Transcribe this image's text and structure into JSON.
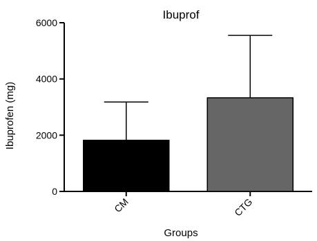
{
  "chart_data": {
    "type": "bar",
    "title": "Ibuprof",
    "xlabel": "Groups",
    "ylabel": "Ibuprofen (mg)",
    "categories": [
      "CM",
      "CTG"
    ],
    "values": [
      1820,
      3330
    ],
    "error_upper": [
      3180,
      5550
    ],
    "bar_colors": [
      "#000000",
      "#666666"
    ],
    "ylim": [
      0,
      6000
    ],
    "yticks": [
      0,
      2000,
      4000,
      6000
    ],
    "ytick_labels": [
      "0",
      "2000",
      "4000",
      "6000"
    ],
    "grid": false,
    "legend": "none"
  }
}
